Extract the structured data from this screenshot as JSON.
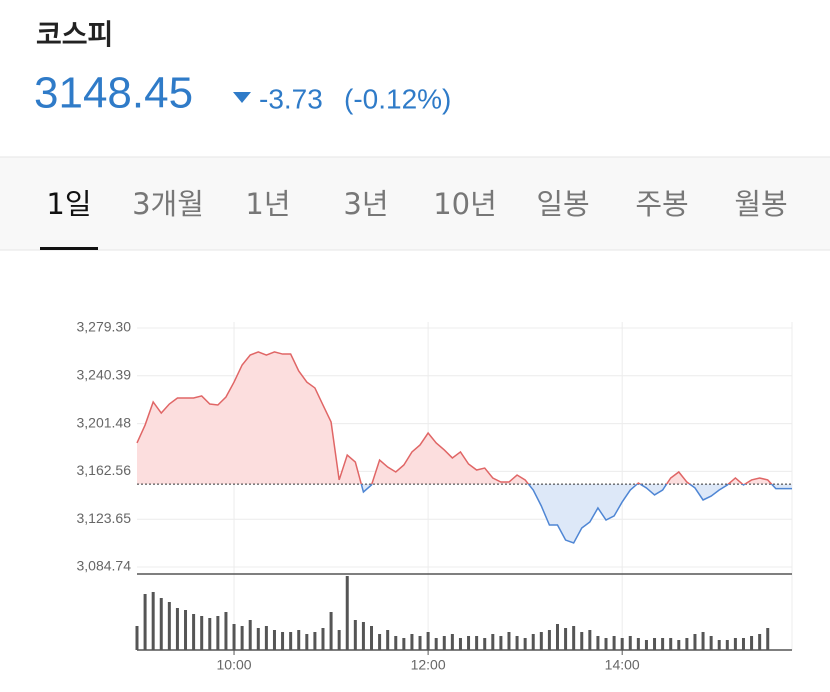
{
  "header": {
    "title": "코스피",
    "price": "3148.45",
    "change": "-3.73",
    "change_pct": "(-0.12%)"
  },
  "tabs": {
    "items": [
      "1일",
      "3개월",
      "1년",
      "3년",
      "10년",
      "일봉",
      "주봉",
      "월봉"
    ],
    "selected": 0
  },
  "chart_data": {
    "type": "line",
    "x": [
      540,
      545,
      550,
      555,
      560,
      565,
      570,
      575,
      580,
      585,
      590,
      595,
      600,
      605,
      610,
      615,
      620,
      625,
      630,
      635,
      640,
      645,
      650,
      655,
      660,
      665,
      670,
      675,
      680,
      685,
      690,
      695,
      700,
      705,
      710,
      715,
      720,
      725,
      730,
      735,
      740,
      745,
      750,
      755,
      760,
      765,
      770,
      775,
      780,
      785,
      790,
      795,
      800,
      805,
      810,
      815,
      820,
      825,
      830,
      835,
      840,
      845,
      850,
      855,
      860,
      865,
      870,
      875,
      880,
      885,
      890,
      895,
      900,
      905,
      910,
      915,
      920,
      925,
      930,
      935,
      940,
      945
    ],
    "values": [
      3185.7,
      3200.3,
      3219.1,
      3210.1,
      3217.4,
      3222.3,
      3222.3,
      3222.3,
      3224.0,
      3217.4,
      3216.6,
      3223.1,
      3235.3,
      3249.2,
      3257.3,
      3259.8,
      3257.3,
      3259.8,
      3258.1,
      3258.1,
      3244.3,
      3235.3,
      3230.5,
      3216.6,
      3202.8,
      3155.6,
      3175.9,
      3170.2,
      3145.8,
      3151.5,
      3171.8,
      3166.1,
      3162.1,
      3167.8,
      3178.4,
      3184.1,
      3193.8,
      3185.7,
      3180.0,
      3173.5,
      3178.4,
      3168.6,
      3163.7,
      3165.3,
      3157.2,
      3153.9,
      3153.9,
      3159.6,
      3155.6,
      3147.4,
      3134.4,
      3118.9,
      3118.9,
      3106.7,
      3104.3,
      3116.5,
      3121.4,
      3132.8,
      3123.0,
      3126.3,
      3137.7,
      3147.4,
      3153.1,
      3149.1,
      3143.4,
      3147.4,
      3157.2,
      3162.1,
      3153.9,
      3149.1,
      3139.3,
      3142.5,
      3147.4,
      3151.5,
      3157.2,
      3151.5,
      3155.6,
      3157.2,
      3155.6,
      3148.5,
      3148.5,
      3148.5
    ],
    "baseline": 3152.18,
    "color_up": "#e06666",
    "fill_up": "#fcdede",
    "color_down": "#4f86d4",
    "fill_down": "#dde8f8",
    "volume": [
      24,
      56,
      58,
      52,
      48,
      42,
      40,
      36,
      34,
      32,
      34,
      38,
      26,
      24,
      30,
      22,
      24,
      20,
      18,
      18,
      20,
      16,
      18,
      22,
      38,
      20,
      74,
      30,
      28,
      24,
      16,
      20,
      14,
      12,
      16,
      14,
      18,
      12,
      14,
      16,
      12,
      14,
      14,
      12,
      16,
      14,
      18,
      14,
      12,
      16,
      18,
      20,
      26,
      22,
      24,
      18,
      20,
      14,
      12,
      14,
      12,
      14,
      12,
      10,
      12,
      12,
      12,
      10,
      12,
      16,
      18,
      14,
      10,
      10,
      12,
      12,
      14,
      16,
      22,
      null,
      null,
      null
    ],
    "volume_lim": [
      0,
      75
    ],
    "volume_color": "#555555",
    "xlim": [
      540,
      945
    ],
    "xticks": [
      {
        "value": 600,
        "label": "10:00"
      },
      {
        "value": 720,
        "label": "12:00"
      },
      {
        "value": 840,
        "label": "14:00"
      }
    ],
    "ylim": [
      3084.74,
      3279.3
    ],
    "yticks": [
      {
        "value": 3084.74,
        "label": "3,084.74"
      },
      {
        "value": 3123.65,
        "label": "3,123.65"
      },
      {
        "value": 3162.56,
        "label": "3,162.56"
      },
      {
        "value": 3201.48,
        "label": "3,201.48"
      },
      {
        "value": 3240.39,
        "label": "3,240.39"
      },
      {
        "value": 3279.3,
        "label": "3,279.30"
      }
    ],
    "grid": true
  }
}
